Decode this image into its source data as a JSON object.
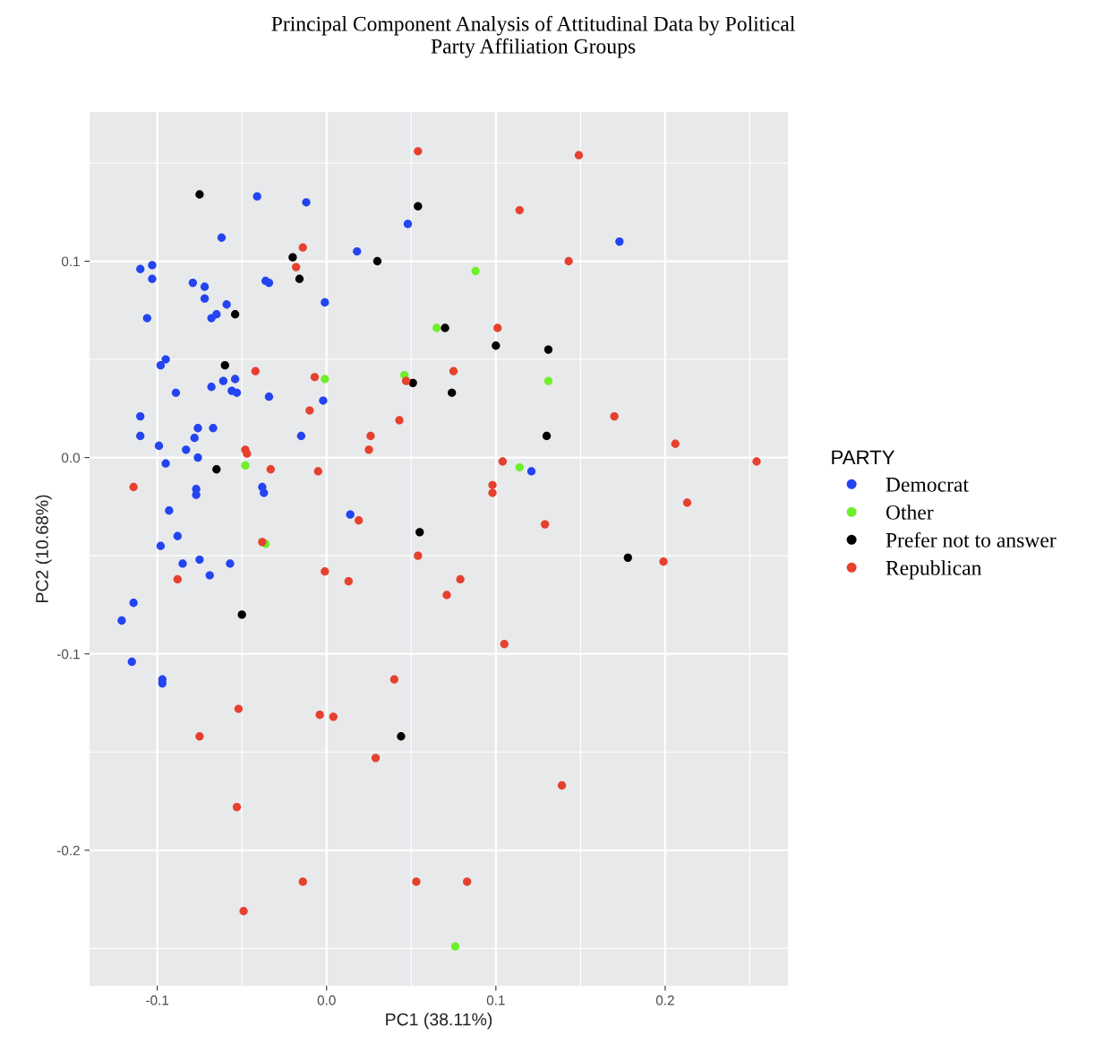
{
  "chart_data": {
    "type": "scatter",
    "title": "Principal Component Analysis of Attitudinal Data by Political\nParty Affiliation Groups",
    "xlabel": "PC1 (38.11%)",
    "ylabel": "PC2 (10.68%)",
    "legend_title": "PARTY",
    "legend": "right",
    "grid": true,
    "marker": "circle",
    "xlim": [
      -0.14,
      0.2725
    ],
    "ylim": [
      -0.269,
      0.176
    ],
    "xticks": [
      {
        "value": -0.1,
        "label": "-0.1"
      },
      {
        "value": 0.0,
        "label": "0.0"
      },
      {
        "value": 0.1,
        "label": "0.1"
      },
      {
        "value": 0.2,
        "label": "0.2"
      }
    ],
    "yticks": [
      {
        "value": -0.2,
        "label": "-0.2"
      },
      {
        "value": -0.1,
        "label": "-0.1"
      },
      {
        "value": 0.0,
        "label": "0.0"
      },
      {
        "value": 0.1,
        "label": "0.1"
      }
    ],
    "series": [
      {
        "name": "Democrat",
        "color": "#2344f0",
        "x": [
          -0.11,
          -0.103,
          -0.103,
          -0.106,
          -0.079,
          -0.072,
          -0.072,
          -0.062,
          -0.041,
          -0.012,
          -0.036,
          -0.034,
          -0.059,
          -0.068,
          -0.065,
          -0.001,
          0.048,
          0.018,
          -0.095,
          -0.098,
          -0.061,
          -0.054,
          -0.068,
          -0.089,
          -0.056,
          -0.053,
          -0.034,
          -0.002,
          -0.11,
          -0.076,
          null,
          -0.067,
          -0.11,
          -0.015,
          -0.078,
          -0.099,
          -0.083,
          -0.076,
          -0.095,
          -0.077,
          -0.077,
          -0.038,
          -0.037,
          -0.093,
          -0.088,
          -0.098,
          -0.085,
          -0.075,
          -0.069,
          -0.057,
          null,
          0.014,
          0.121,
          0.173,
          -0.114,
          -0.121,
          -0.115,
          -0.097,
          -0.097
        ],
        "values": [
          0.096,
          0.098,
          0.091,
          0.071,
          0.089,
          0.087,
          0.081,
          0.112,
          0.133,
          0.13,
          0.09,
          0.089,
          0.078,
          0.071,
          0.073,
          0.079,
          0.119,
          0.105,
          0.05,
          0.047,
          0.039,
          0.04,
          0.036,
          0.033,
          0.034,
          0.033,
          0.031,
          0.029,
          0.021,
          0.015,
          null,
          0.015,
          0.011,
          0.011,
          0.01,
          0.006,
          0.004,
          0.0,
          -0.003,
          -0.016,
          -0.019,
          -0.015,
          -0.018,
          -0.027,
          -0.04,
          -0.045,
          -0.054,
          -0.052,
          -0.06,
          -0.054,
          null,
          -0.029,
          -0.007,
          0.11,
          -0.074,
          -0.083,
          -0.104,
          -0.113,
          -0.115
        ]
      },
      {
        "name": "Other",
        "color": "#6ef02a",
        "x": [
          0.088,
          0.065,
          0.046,
          -0.001,
          0.131,
          -0.048,
          -0.036,
          0.114,
          null,
          0.076
        ],
        "values": [
          0.095,
          0.066,
          0.042,
          0.04,
          0.039,
          -0.004,
          -0.044,
          -0.005,
          null,
          -0.249
        ]
      },
      {
        "name": "Prefer not to answer",
        "color": "#000000",
        "x": [
          -0.075,
          -0.02,
          -0.016,
          -0.054,
          -0.06,
          0.03,
          0.054,
          0.07,
          0.1,
          0.131,
          0.051,
          0.074,
          0.13,
          -0.065,
          -0.05,
          0.055,
          0.178,
          0.044
        ],
        "values": [
          0.134,
          0.102,
          0.091,
          0.073,
          0.047,
          0.1,
          0.128,
          0.066,
          0.057,
          0.055,
          0.038,
          0.033,
          0.011,
          -0.006,
          -0.08,
          -0.038,
          -0.051,
          -0.142
        ]
      },
      {
        "name": "Republican",
        "color": "#e6402f",
        "x": [
          0.054,
          0.149,
          0.114,
          -0.014,
          -0.018,
          0.143,
          0.101,
          -0.042,
          -0.007,
          0.047,
          0.075,
          -0.01,
          0.043,
          0.17,
          0.026,
          0.025,
          -0.048,
          -0.047,
          0.206,
          0.254,
          0.104,
          0.098,
          0.098,
          -0.033,
          -0.005,
          -0.114,
          0.019,
          0.213,
          0.129,
          -0.038,
          0.054,
          0.199,
          0.079,
          -0.001,
          0.013,
          -0.088,
          0.071,
          0.105,
          0.04,
          -0.052,
          -0.004,
          0.004,
          -0.075,
          0.029,
          0.139,
          -0.053,
          -0.014,
          0.053,
          0.083,
          -0.049
        ],
        "values": [
          0.156,
          0.154,
          0.126,
          0.107,
          0.097,
          0.1,
          0.066,
          0.044,
          0.041,
          0.039,
          0.044,
          0.024,
          0.019,
          0.021,
          0.011,
          0.004,
          0.004,
          0.002,
          0.007,
          -0.002,
          -0.002,
          -0.014,
          -0.018,
          -0.006,
          -0.007,
          -0.015,
          -0.032,
          -0.023,
          -0.034,
          -0.043,
          -0.05,
          -0.053,
          -0.062,
          -0.058,
          -0.063,
          -0.062,
          -0.07,
          -0.095,
          -0.113,
          -0.128,
          -0.131,
          -0.132,
          -0.142,
          -0.153,
          -0.167,
          -0.178,
          -0.216,
          -0.216,
          -0.216,
          -0.231
        ]
      }
    ]
  }
}
